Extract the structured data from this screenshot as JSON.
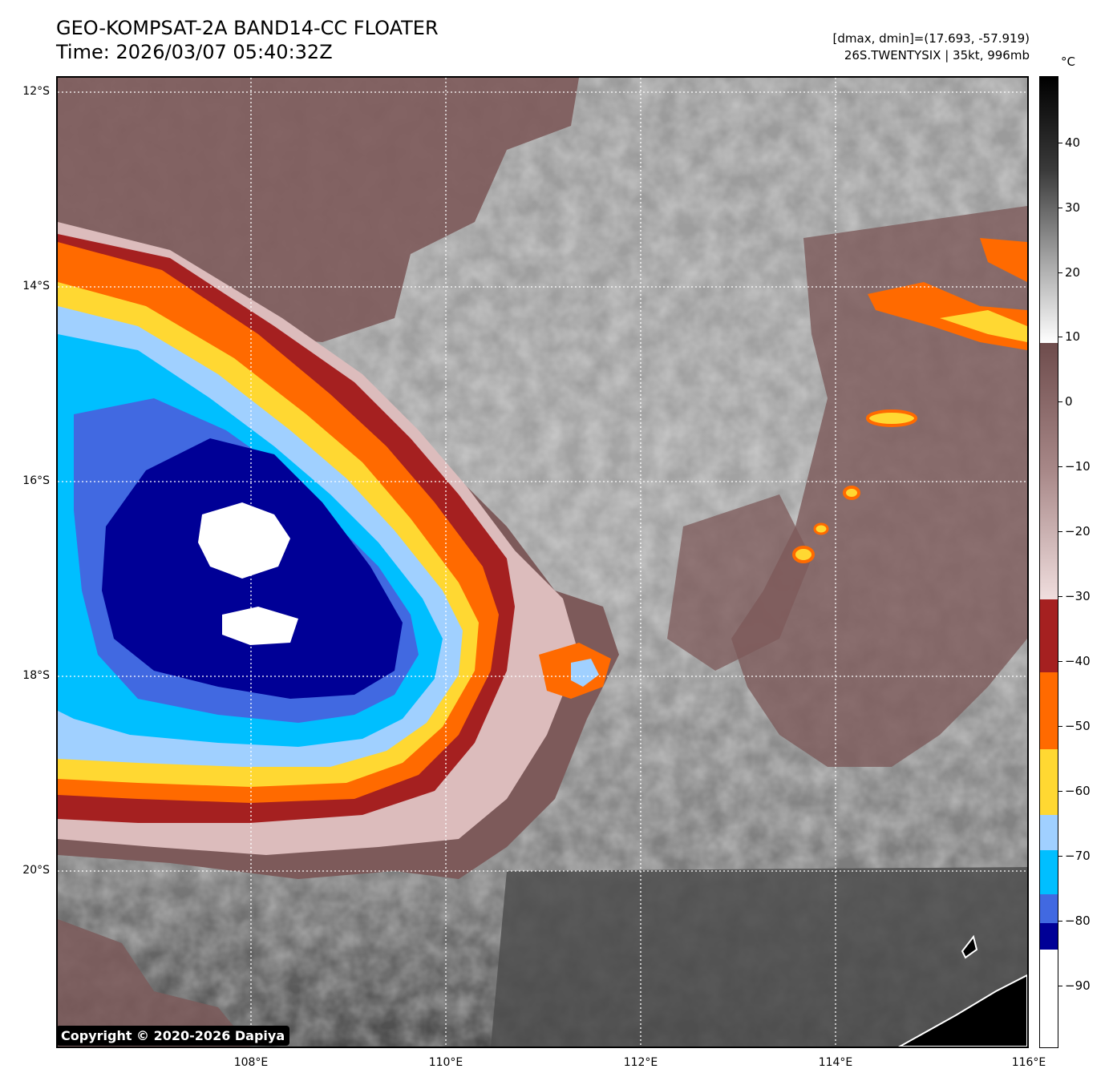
{
  "title": {
    "line1": "GEO-KOMPSAT-2A BAND14-CC FLOATER",
    "line2": "Time: 2026/03/07 05:40:32Z"
  },
  "subtitle": {
    "line1": "[dmax, dmin]=(17.693, -57.919)",
    "line2": "26S.TWENTYSIX | 35kt, 996mb"
  },
  "copyright": "Copyright © 2020-2026 Dapiya",
  "axes": {
    "lat_labels": [
      "12°S",
      "14°S",
      "16°S",
      "18°S",
      "20°S"
    ],
    "lon_labels": [
      "108°E",
      "110°E",
      "112°E",
      "114°E",
      "116°E"
    ]
  },
  "colorbar": {
    "unit": "°C",
    "ticks": [
      "40",
      "30",
      "20",
      "10",
      "0",
      "−10",
      "−20",
      "−30",
      "−40",
      "−50",
      "−60",
      "−70",
      "−80",
      "−90"
    ],
    "colors": {
      "dark_blue": "#000096",
      "royal_blue": "#4169e1",
      "deep_sky": "#00bfff",
      "light_sky": "#a0d0ff",
      "yellow": "#ffd832",
      "orange": "#ff6a00",
      "dark_red": "#a52020",
      "mauve": "#7d5a5a",
      "pink": "#e0c0c0"
    }
  }
}
